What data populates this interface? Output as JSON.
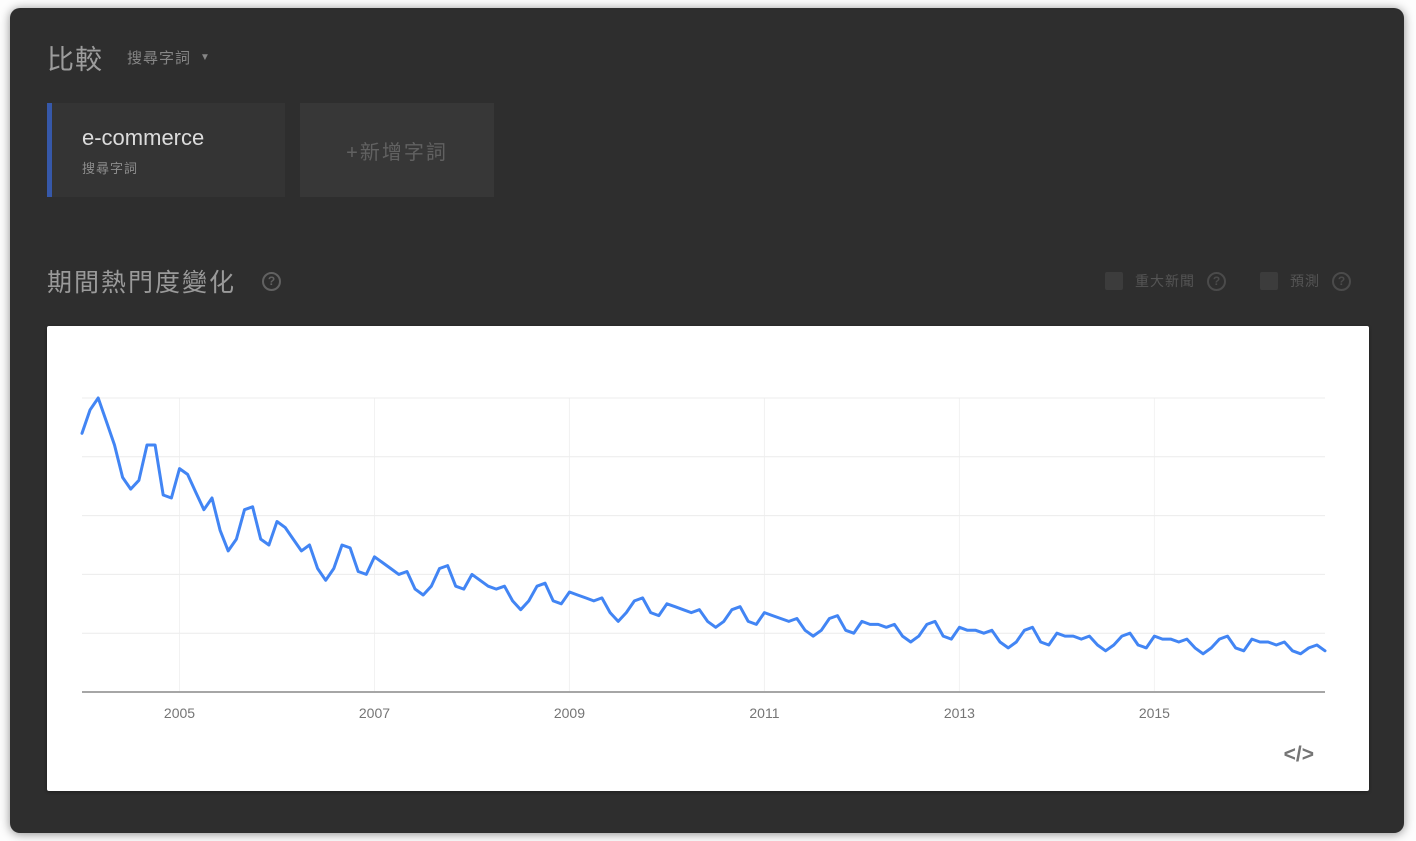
{
  "header": {
    "title": "比較",
    "term_type_label": "搜尋字詞",
    "caret_icon": "▼"
  },
  "terms": {
    "term_card": {
      "name": "e-commerce",
      "type_label": "搜尋字詞",
      "accent_color": "#3658a9"
    },
    "add_term_label": "+新增字詞"
  },
  "section": {
    "title": "期間熱門度變化",
    "help_icon": "?",
    "toggles": [
      {
        "label": "重大新聞",
        "help_icon": "?"
      },
      {
        "label": "預測",
        "help_icon": "?"
      }
    ]
  },
  "chart": {
    "embed_icon": "</>"
  },
  "colors": {
    "line": "#4285f4",
    "grid": "#ececec",
    "vgrid": "#f2f2f2",
    "axis": "#a6a6a6",
    "tick_label": "#757575"
  },
  "chart_data": {
    "type": "line",
    "title": "期間熱門度變化",
    "xlabel": "",
    "ylabel": "",
    "ylim": [
      0,
      100
    ],
    "y_gridline_step": 20,
    "grid": "horizontal+vertical-ticks",
    "legend": "none",
    "x_start_month": "2004-01",
    "x_end_month": "2016-10",
    "x_tick_years": [
      2005,
      2007,
      2009,
      2011,
      2013,
      2015
    ],
    "x_tick_labels": [
      "2005",
      "2007",
      "2009",
      "2011",
      "2013",
      "2015"
    ],
    "series": [
      {
        "name": "e-commerce",
        "color": "#4285f4",
        "monthly_values": [
          88,
          96,
          100,
          92,
          84,
          73,
          69,
          72,
          84,
          84,
          67,
          66,
          76,
          74,
          68,
          62,
          66,
          55,
          48,
          52,
          62,
          63,
          52,
          50,
          58,
          56,
          52,
          48,
          50,
          42,
          38,
          42,
          50,
          49,
          41,
          40,
          46,
          44,
          42,
          40,
          41,
          35,
          33,
          36,
          42,
          43,
          36,
          35,
          40,
          38,
          36,
          35,
          36,
          31,
          28,
          31,
          36,
          37,
          31,
          30,
          34,
          33,
          32,
          31,
          32,
          27,
          24,
          27,
          31,
          32,
          27,
          26,
          30,
          29,
          28,
          27,
          28,
          24,
          22,
          24,
          28,
          29,
          24,
          23,
          27,
          26,
          25,
          24,
          25,
          21,
          19,
          21,
          25,
          26,
          21,
          20,
          24,
          23,
          23,
          22,
          23,
          19,
          17,
          19,
          23,
          24,
          19,
          18,
          22,
          21,
          21,
          20,
          21,
          17,
          15,
          17,
          21,
          22,
          17,
          16,
          20,
          19,
          19,
          18,
          19,
          16,
          14,
          16,
          19,
          20,
          16,
          15,
          19,
          18,
          18,
          17,
          18,
          15,
          13,
          15,
          18,
          19,
          15,
          14,
          18,
          17,
          17,
          16,
          17,
          14,
          13,
          15,
          16,
          14
        ]
      }
    ]
  }
}
